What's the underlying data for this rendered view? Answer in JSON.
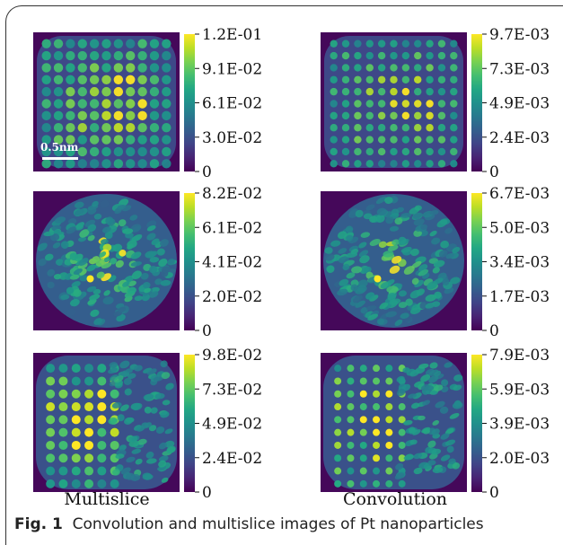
{
  "caption": {
    "fig_label": "Fig. 1",
    "text": "Convolution and multislice images of Pt nanoparticles"
  },
  "column_labels": {
    "left": "Multislice",
    "right": "Convolution"
  },
  "scale_bar": {
    "label": "0.5nm"
  },
  "chart_data": [
    {
      "type": "heatmap",
      "panel": "multislice-row1",
      "colorbar_ticks": [
        "1.2E-01",
        "9.1E-02",
        "6.1E-02",
        "3.0E-02",
        "0"
      ],
      "pattern": "regular-lattice"
    },
    {
      "type": "heatmap",
      "panel": "convolution-row1",
      "colorbar_ticks": [
        "9.7E-03",
        "7.3E-03",
        "4.9E-03",
        "2.4E-03",
        "0"
      ],
      "pattern": "regular-lattice"
    },
    {
      "type": "heatmap",
      "panel": "multislice-row2",
      "colorbar_ticks": [
        "8.2E-02",
        "6.1E-02",
        "4.1E-02",
        "2.0E-02",
        "0"
      ],
      "pattern": "disordered-round"
    },
    {
      "type": "heatmap",
      "panel": "convolution-row2",
      "colorbar_ticks": [
        "6.7E-03",
        "5.0E-03",
        "3.4E-03",
        "1.7E-03",
        "0"
      ],
      "pattern": "disordered-round"
    },
    {
      "type": "heatmap",
      "panel": "multislice-row3",
      "colorbar_ticks": [
        "9.8E-02",
        "7.3E-02",
        "4.9E-02",
        "2.4E-02",
        "0"
      ],
      "pattern": "partial-lattice"
    },
    {
      "type": "heatmap",
      "panel": "convolution-row3",
      "colorbar_ticks": [
        "7.9E-03",
        "5.9E-03",
        "3.9E-03",
        "2.0E-03",
        "0"
      ],
      "pattern": "partial-lattice"
    }
  ],
  "colors": {
    "viridis_low": "#440154",
    "viridis_mid": "#21918c",
    "viridis_high": "#fde725"
  }
}
